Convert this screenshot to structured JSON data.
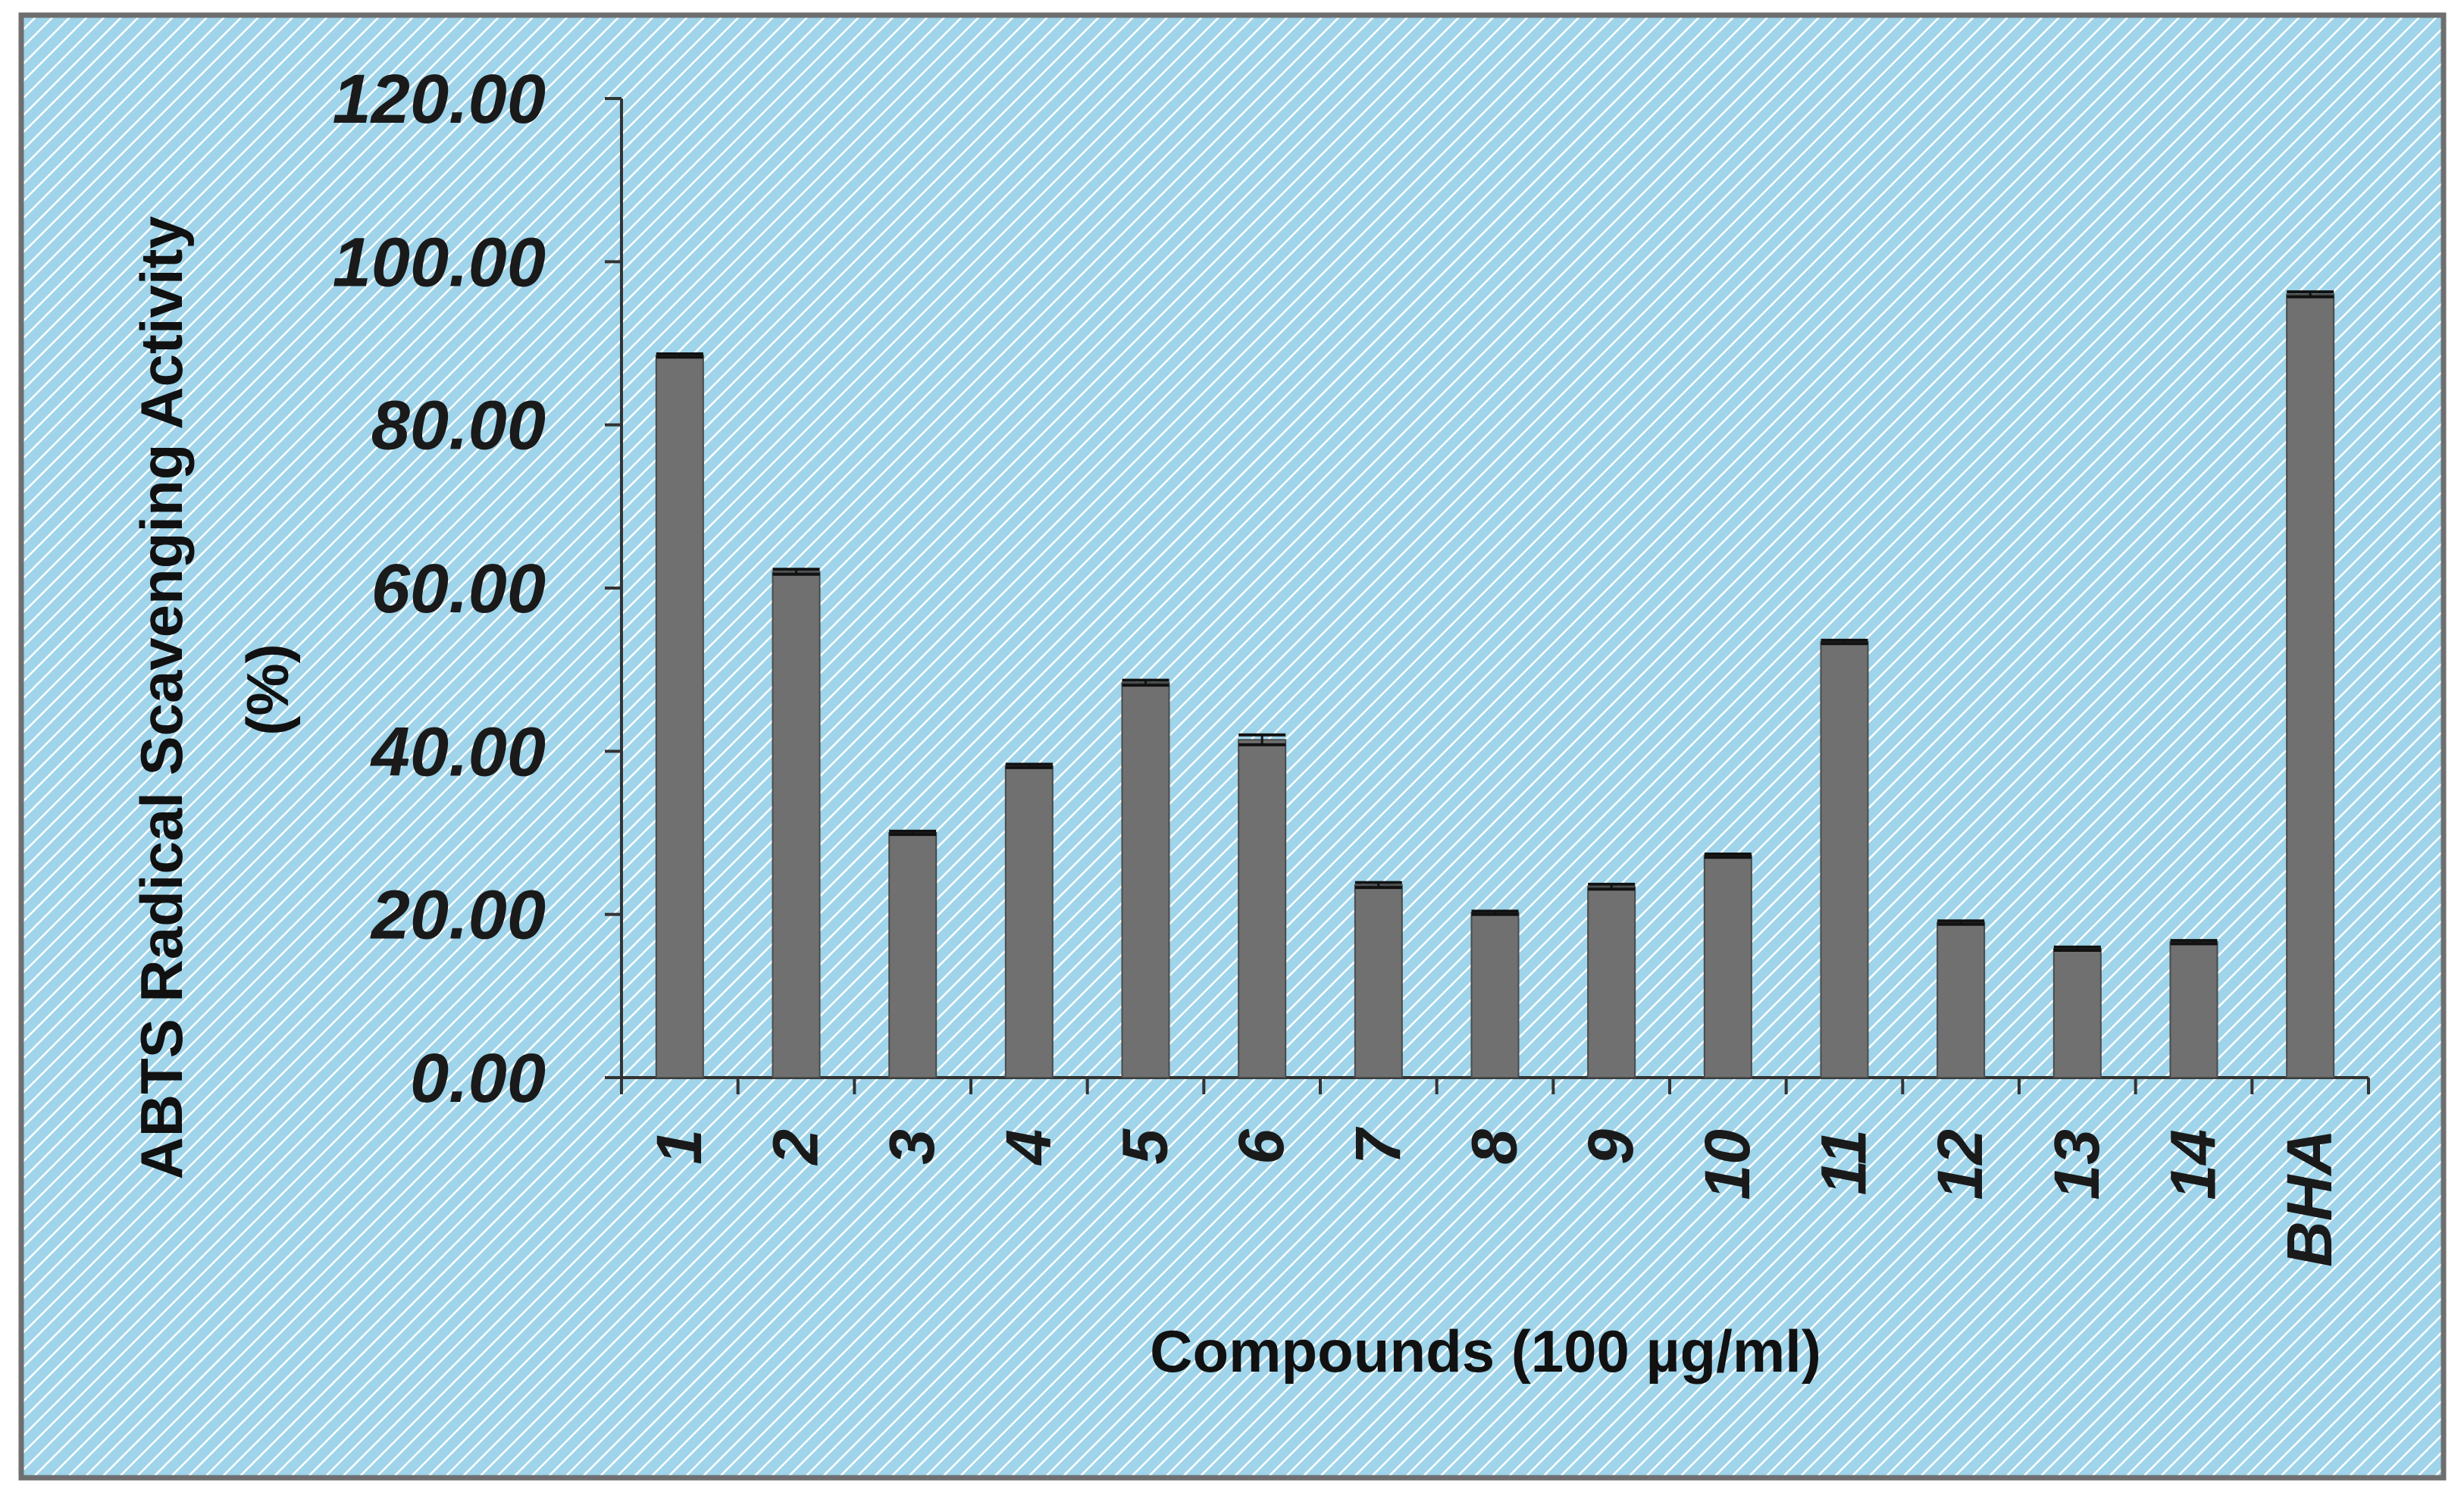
{
  "colors": {
    "background": "#9fd4ea",
    "hatch": "#ffffff",
    "frame": "#6e6e6e",
    "bar": "#707070",
    "bar_edge": "#4a4a4a",
    "error_bar": "#111111",
    "axis": "#333333"
  },
  "chart_data": {
    "type": "bar",
    "categories": [
      "1",
      "2",
      "3",
      "4",
      "5",
      "6",
      "7",
      "8",
      "9",
      "10",
      "11",
      "12",
      "13",
      "14",
      "BHA"
    ],
    "values": [
      88.5,
      62.0,
      30.0,
      38.2,
      48.4,
      41.4,
      23.6,
      20.2,
      23.4,
      27.2,
      53.4,
      19.0,
      15.8,
      16.6,
      96.0
    ],
    "errors": [
      0.2,
      0.3,
      0.2,
      0.2,
      0.3,
      0.6,
      0.3,
      0.2,
      0.3,
      0.2,
      0.2,
      0.2,
      0.2,
      0.2,
      0.3
    ],
    "xlabel": "Compounds  (100 µg/ml)",
    "ylabel_line1": "ABTS Radical  Scavenging Activity",
    "ylabel_line2": "(%)",
    "ylim": [
      0,
      120
    ],
    "yticks": [
      0,
      20,
      40,
      60,
      80,
      100,
      120
    ],
    "ytick_labels": [
      "0.00",
      "20.00",
      "40.00",
      "60.00",
      "80.00",
      "100.00",
      "120.00"
    ],
    "grid": false,
    "legend": "none"
  }
}
